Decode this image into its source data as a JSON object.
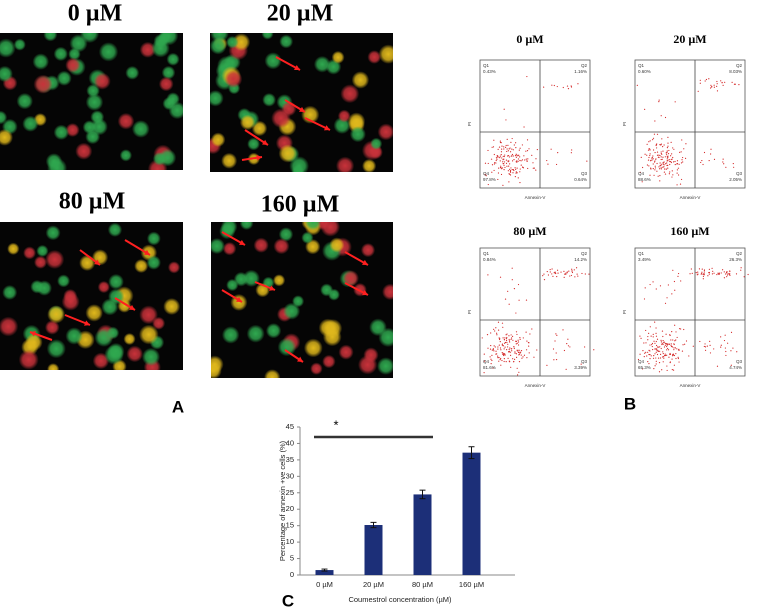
{
  "panel_a": {
    "letter": "A",
    "images": [
      {
        "label": "0 µM"
      },
      {
        "label": "20 µM"
      },
      {
        "label": "80 µM"
      },
      {
        "label": "160 µM"
      }
    ]
  },
  "panel_b": {
    "letter": "B",
    "x_axis_label": "Annexin-V",
    "y_axis_label": "PI",
    "plots": [
      {
        "title": "0 µM",
        "quadrants": [
          {
            "name": "Q1",
            "percent": "0.43%"
          },
          {
            "name": "Q2",
            "percent": "1.16%"
          },
          {
            "name": "Q3",
            "percent": "0.64%"
          },
          {
            "name": "Q4",
            "percent": "97.8%"
          }
        ]
      },
      {
        "title": "20 µM",
        "quadrants": [
          {
            "name": "Q1",
            "percent": "0.60%"
          },
          {
            "name": "Q2",
            "percent": "8.03%"
          },
          {
            "name": "Q3",
            "percent": "2.05%"
          },
          {
            "name": "Q4",
            "percent": "88.6%"
          }
        ]
      },
      {
        "title": "80 µM",
        "quadrants": [
          {
            "name": "Q1",
            "percent": "0.84%"
          },
          {
            "name": "Q2",
            "percent": "14.2%"
          },
          {
            "name": "Q3",
            "percent": "3.39%"
          },
          {
            "name": "Q4",
            "percent": "81.6%"
          }
        ]
      },
      {
        "title": "160 µM",
        "quadrants": [
          {
            "name": "Q1",
            "percent": "3.49%"
          },
          {
            "name": "Q2",
            "percent": "26.3%"
          },
          {
            "name": "Q3",
            "percent": "4.74%"
          },
          {
            "name": "Q4",
            "percent": "65.3%"
          }
        ]
      }
    ]
  },
  "chart_data": {
    "type": "bar",
    "letter": "C",
    "categories": [
      "0 µM",
      "20 µM",
      "80 µM",
      "160 µM"
    ],
    "values": [
      1.5,
      15.2,
      24.5,
      37.2
    ],
    "errors": [
      0.3,
      0.8,
      1.3,
      1.8
    ],
    "color": "#1c2f78",
    "ylim": [
      0,
      45
    ],
    "yticks": [
      0,
      5,
      10,
      15,
      20,
      25,
      30,
      35,
      40,
      45
    ],
    "y_axis_label": "Percentage of annexin +ve cells (%)",
    "x_axis_label": "Coumestrol concentration (µM)",
    "annotation": "*"
  }
}
